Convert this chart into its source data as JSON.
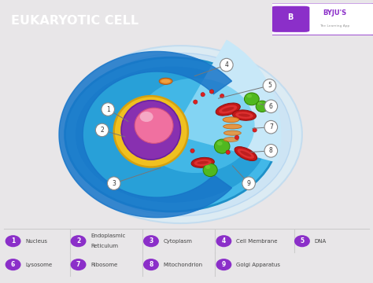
{
  "title": "EUKARYOTIC CELL",
  "title_color": "#ffffff",
  "title_bg_color": "#8b2fc9",
  "bg_color": "#e8e6e8",
  "byju_color": "#8b2fc9",
  "legend_items_row1": [
    {
      "num": "1",
      "label": "Nucleus"
    },
    {
      "num": "2",
      "label": "Endoplasmic\nReticulum"
    },
    {
      "num": "3",
      "label": "Cytoplasm"
    },
    {
      "num": "4",
      "label": "Cell Membrane"
    },
    {
      "num": "5",
      "label": "DNA"
    }
  ],
  "legend_items_row2": [
    {
      "num": "6",
      "label": "Lysosome"
    },
    {
      "num": "7",
      "label": "Ribosome"
    },
    {
      "num": "8",
      "label": "Mitochondrion"
    },
    {
      "num": "9",
      "label": "Golgi Apparatus"
    }
  ],
  "circle_color": "#8b2fc9",
  "circle_text_color": "#ffffff",
  "separator_color": "#cccccc",
  "text_color": "#444444",
  "label_circle_edge": "#888888",
  "label_circle_face": "#f0f0f0",
  "line_color": "#777777"
}
